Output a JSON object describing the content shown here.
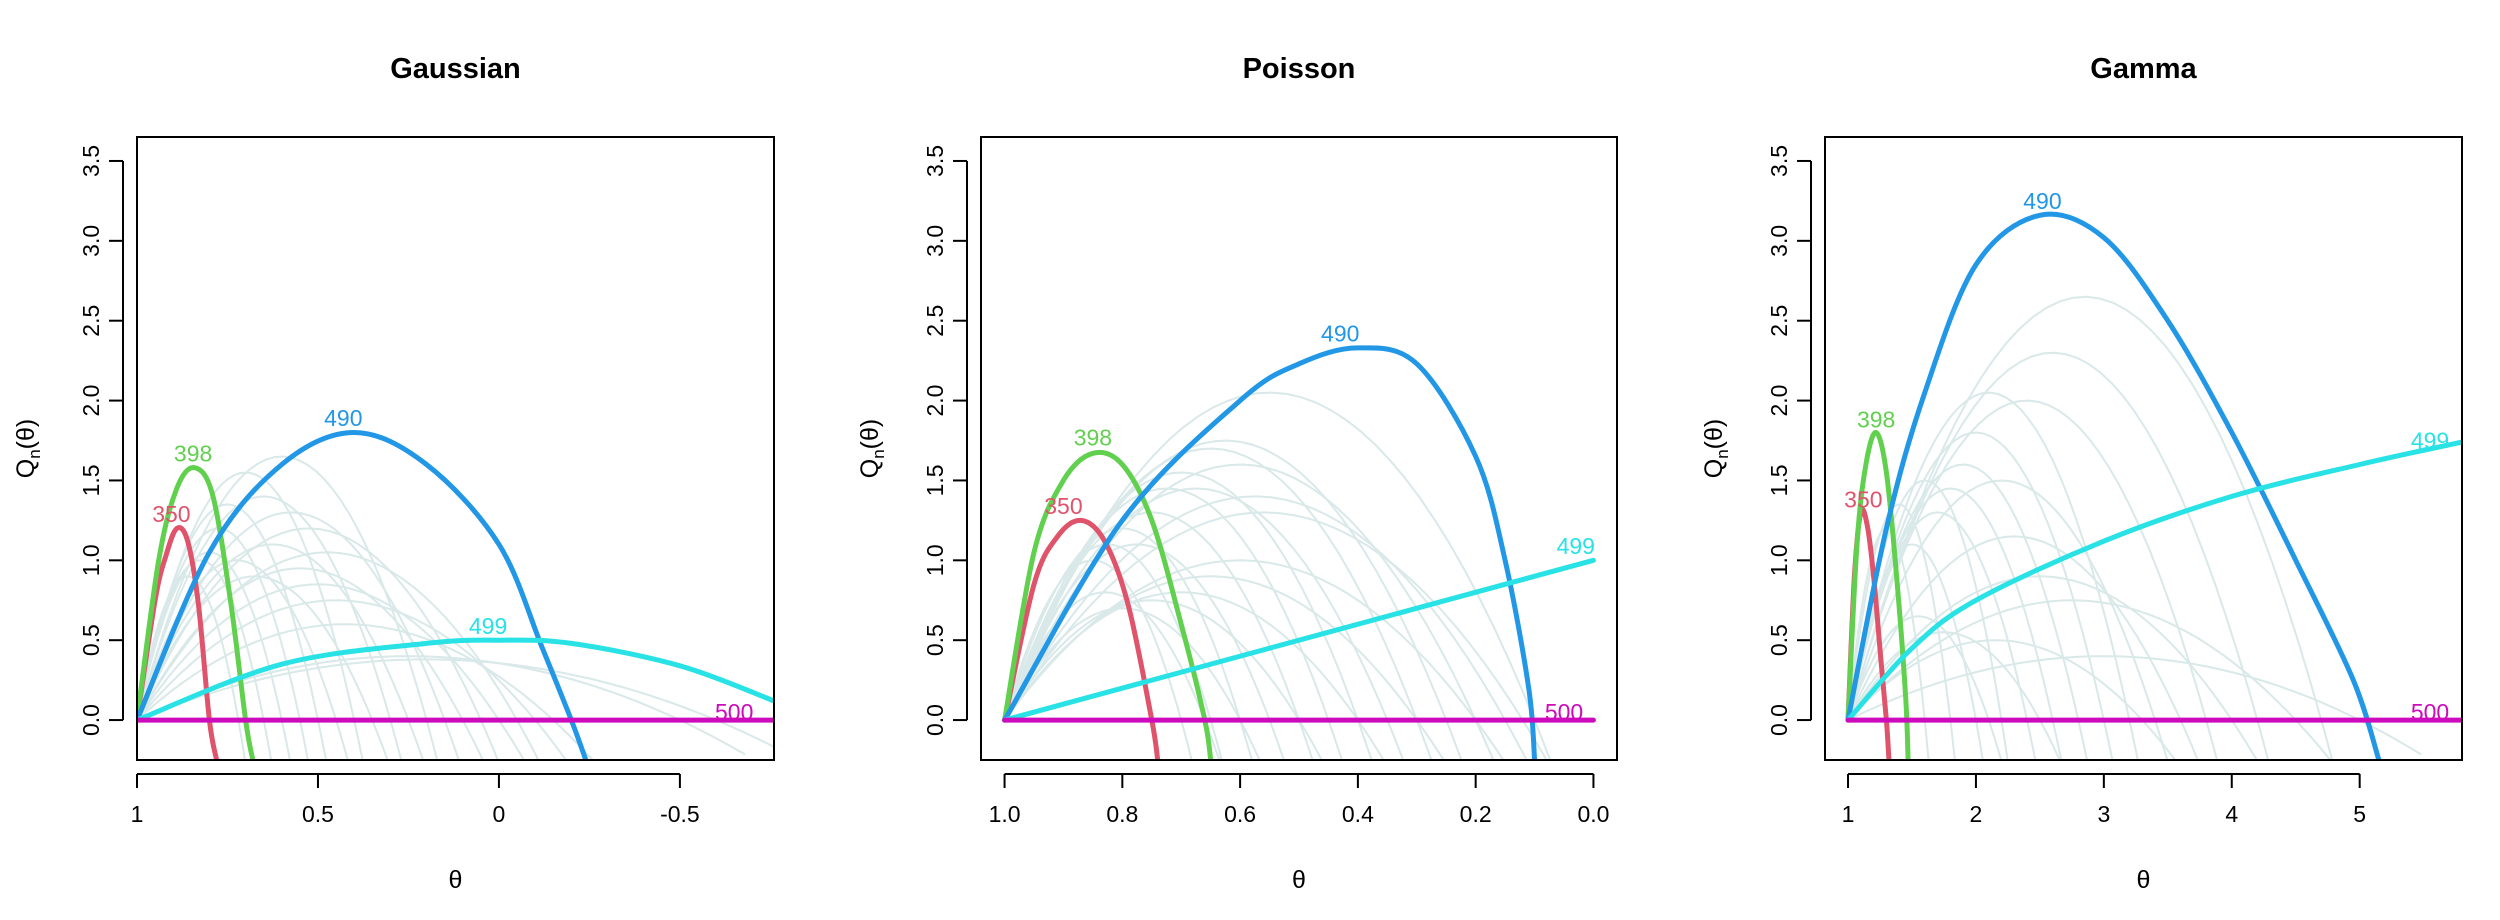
{
  "colors": {
    "background": "#ffffff",
    "axis": "#000000",
    "background_curves": "#d9e8e8",
    "350": "#df536b",
    "398": "#61d04f",
    "490": "#2297e6",
    "499": "#28e2e5",
    "500": "#cd0bbc"
  },
  "chart_data": [
    {
      "type": "line",
      "title": "Gaussian",
      "xlabel": "θ",
      "ylabel": "Qn(θ)",
      "ylabel_main": "Q",
      "ylabel_sub": "n",
      "ylabel_arg": "(θ)",
      "xlim": [
        1.0,
        -0.76
      ],
      "ylim": [
        -0.25,
        3.65
      ],
      "xticks": [
        1,
        0.5,
        0,
        -0.5
      ],
      "xtick_labels": [
        "1",
        "0.5",
        "0",
        "-0.5"
      ],
      "yticks": [
        0.0,
        0.5,
        1.0,
        1.5,
        2.0,
        2.5,
        3.0,
        3.5
      ],
      "ytick_labels": [
        "0.0",
        "0.5",
        "1.0",
        "1.5",
        "2.0",
        "2.5",
        "3.0",
        "3.5"
      ],
      "grid": false,
      "legend": "none",
      "series": [
        {
          "name": "350",
          "points": [
            [
              1.0,
              0.0
            ],
            [
              0.95,
              0.75
            ],
            [
              0.92,
              1.03
            ],
            [
              0.89,
              1.2
            ],
            [
              0.86,
              1.12
            ],
            [
              0.83,
              0.72
            ],
            [
              0.8,
              0.0
            ],
            [
              0.78,
              -0.25
            ]
          ]
        },
        {
          "name": "398",
          "points": [
            [
              1.0,
              0.0
            ],
            [
              0.94,
              1.0
            ],
            [
              0.89,
              1.45
            ],
            [
              0.84,
              1.58
            ],
            [
              0.79,
              1.4
            ],
            [
              0.74,
              0.72
            ],
            [
              0.7,
              0.0
            ],
            [
              0.68,
              -0.25
            ]
          ]
        },
        {
          "name": "490",
          "points": [
            [
              1.0,
              0.0
            ],
            [
              0.8,
              1.05
            ],
            [
              0.6,
              1.6
            ],
            [
              0.4,
              1.8
            ],
            [
              0.2,
              1.6
            ],
            [
              0.0,
              1.1
            ],
            [
              -0.12,
              0.45
            ],
            [
              -0.2,
              0.0
            ],
            [
              -0.24,
              -0.25
            ]
          ]
        },
        {
          "name": "499",
          "points": [
            [
              1.0,
              0.0
            ],
            [
              0.6,
              0.35
            ],
            [
              0.2,
              0.48
            ],
            [
              0.0,
              0.5
            ],
            [
              -0.2,
              0.48
            ],
            [
              -0.5,
              0.34
            ],
            [
              -0.76,
              0.12
            ]
          ]
        },
        {
          "name": "500",
          "points": [
            [
              1.0,
              0.0
            ],
            [
              -0.76,
              0.0
            ]
          ]
        }
      ],
      "labels": [
        {
          "text": "350",
          "x": 0.905,
          "y": 1.29
        },
        {
          "text": "398",
          "x": 0.845,
          "y": 1.67
        },
        {
          "text": "490",
          "x": 0.43,
          "y": 1.89
        },
        {
          "text": "499",
          "x": 0.03,
          "y": 0.59
        },
        {
          "text": "500",
          "x": -0.65,
          "y": 0.05
        }
      ],
      "background_curves": [
        {
          "end": 0.72,
          "peak": 0.9
        },
        {
          "end": 0.65,
          "peak": 1.0
        },
        {
          "end": 0.6,
          "peak": 1.05
        },
        {
          "end": 0.55,
          "peak": 1.2
        },
        {
          "end": 0.5,
          "peak": 1.35
        },
        {
          "end": 0.45,
          "peak": 1.0
        },
        {
          "end": 0.4,
          "peak": 1.55
        },
        {
          "end": 0.35,
          "peak": 0.9
        },
        {
          "end": 0.3,
          "peak": 1.4
        },
        {
          "end": 0.25,
          "peak": 1.1
        },
        {
          "end": 0.2,
          "peak": 1.65
        },
        {
          "end": 0.15,
          "peak": 1.3
        },
        {
          "end": 0.1,
          "peak": 0.95
        },
        {
          "end": 0.05,
          "peak": 1.2
        },
        {
          "end": 0.0,
          "peak": 0.85
        },
        {
          "end": -0.05,
          "peak": 1.05
        },
        {
          "end": -0.1,
          "peak": 0.75
        },
        {
          "end": -0.15,
          "peak": 0.6
        },
        {
          "end": -0.5,
          "peak": 0.4
        },
        {
          "end": -0.6,
          "peak": 0.38
        }
      ]
    },
    {
      "type": "line",
      "title": "Poisson",
      "xlabel": "θ",
      "ylabel": "Qn(θ)",
      "ylabel_main": "Q",
      "ylabel_sub": "n",
      "ylabel_arg": "(θ)",
      "xlim": [
        1.04,
        -0.04
      ],
      "ylim": [
        -0.25,
        3.65
      ],
      "xticks": [
        1.0,
        0.8,
        0.6,
        0.4,
        0.2,
        0.0
      ],
      "xtick_labels": [
        "1.0",
        "0.8",
        "0.6",
        "0.4",
        "0.2",
        "0.0"
      ],
      "yticks": [
        0.0,
        0.5,
        1.0,
        1.5,
        2.0,
        2.5,
        3.0,
        3.5
      ],
      "ytick_labels": [
        "0.0",
        "0.5",
        "1.0",
        "1.5",
        "2.0",
        "2.5",
        "3.0",
        "3.5"
      ],
      "grid": false,
      "legend": "none",
      "series": [
        {
          "name": "350",
          "points": [
            [
              1.0,
              0.0
            ],
            [
              0.95,
              0.85
            ],
            [
              0.91,
              1.15
            ],
            [
              0.87,
              1.25
            ],
            [
              0.83,
              1.12
            ],
            [
              0.79,
              0.72
            ],
            [
              0.75,
              0.0
            ],
            [
              0.74,
              -0.25
            ]
          ]
        },
        {
          "name": "398",
          "points": [
            [
              1.0,
              0.0
            ],
            [
              0.95,
              1.05
            ],
            [
              0.9,
              1.5
            ],
            [
              0.85,
              1.67
            ],
            [
              0.8,
              1.6
            ],
            [
              0.75,
              1.25
            ],
            [
              0.7,
              0.6
            ],
            [
              0.66,
              0.0
            ],
            [
              0.65,
              -0.25
            ]
          ]
        },
        {
          "name": "490",
          "points": [
            [
              1.0,
              0.0
            ],
            [
              0.8,
              1.25
            ],
            [
              0.6,
              2.0
            ],
            [
              0.5,
              2.23
            ],
            [
              0.4,
              2.33
            ],
            [
              0.3,
              2.23
            ],
            [
              0.2,
              1.65
            ],
            [
              0.15,
              1.0
            ],
            [
              0.11,
              0.2
            ],
            [
              0.1,
              -0.25
            ]
          ]
        },
        {
          "name": "499",
          "points": [
            [
              1.0,
              0.0
            ],
            [
              0.0,
              1.0
            ]
          ]
        },
        {
          "name": "500",
          "points": [
            [
              1.0,
              0.0
            ],
            [
              0.0,
              0.0
            ]
          ]
        }
      ],
      "labels": [
        {
          "text": "350",
          "x": 0.9,
          "y": 1.34
        },
        {
          "text": "398",
          "x": 0.85,
          "y": 1.77
        },
        {
          "text": "490",
          "x": 0.43,
          "y": 2.42
        },
        {
          "text": "499",
          "x": 0.03,
          "y": 1.09
        },
        {
          "text": "500",
          "x": 0.05,
          "y": 0.05
        }
      ],
      "background_curves": [
        {
          "end": 0.7,
          "peak": 1.0
        },
        {
          "end": 0.65,
          "peak": 1.1
        },
        {
          "end": 0.6,
          "peak": 1.2
        },
        {
          "end": 0.55,
          "peak": 1.1
        },
        {
          "end": 0.5,
          "peak": 1.3
        },
        {
          "end": 0.45,
          "peak": 1.45
        },
        {
          "end": 0.4,
          "peak": 1.55
        },
        {
          "end": 0.35,
          "peak": 1.45
        },
        {
          "end": 0.3,
          "peak": 1.7
        },
        {
          "end": 0.25,
          "peak": 1.75
        },
        {
          "end": 0.2,
          "peak": 1.6
        },
        {
          "end": 0.15,
          "peak": 1.4
        },
        {
          "end": 0.1,
          "peak": 2.05
        },
        {
          "end": 0.12,
          "peak": 1.3
        },
        {
          "end": 0.2,
          "peak": 1.0
        },
        {
          "end": 0.3,
          "peak": 0.9
        },
        {
          "end": 0.4,
          "peak": 0.8
        },
        {
          "end": 0.5,
          "peak": 0.75
        },
        {
          "end": 0.6,
          "peak": 0.7
        },
        {
          "end": 0.66,
          "peak": 0.8
        }
      ]
    },
    {
      "type": "line",
      "title": "Gamma",
      "xlabel": "θ",
      "ylabel": "Qn(θ)",
      "ylabel_main": "Q",
      "ylabel_sub": "n",
      "ylabel_arg": "(θ)",
      "xlim": [
        0.82,
        5.8
      ],
      "ylim": [
        -0.25,
        3.65
      ],
      "xticks": [
        1,
        2,
        3,
        4,
        5
      ],
      "xtick_labels": [
        "1",
        "2",
        "3",
        "4",
        "5"
      ],
      "yticks": [
        0.0,
        0.5,
        1.0,
        1.5,
        2.0,
        2.5,
        3.0,
        3.5
      ],
      "ytick_labels": [
        "0.0",
        "0.5",
        "1.0",
        "1.5",
        "2.0",
        "2.5",
        "3.0",
        "3.5"
      ],
      "grid": false,
      "legend": "none",
      "series": [
        {
          "name": "350",
          "points": [
            [
              1.0,
              0.0
            ],
            [
              1.05,
              0.9
            ],
            [
              1.1,
              1.3
            ],
            [
              1.15,
              1.22
            ],
            [
              1.2,
              0.9
            ],
            [
              1.26,
              0.35
            ],
            [
              1.3,
              0.0
            ],
            [
              1.32,
              -0.25
            ]
          ]
        },
        {
          "name": "398",
          "points": [
            [
              1.0,
              0.0
            ],
            [
              1.07,
              1.1
            ],
            [
              1.14,
              1.6
            ],
            [
              1.22,
              1.8
            ],
            [
              1.3,
              1.55
            ],
            [
              1.38,
              0.9
            ],
            [
              1.45,
              0.15
            ],
            [
              1.47,
              -0.25
            ]
          ]
        },
        {
          "name": "490",
          "points": [
            [
              1.0,
              0.0
            ],
            [
              1.3,
              1.2
            ],
            [
              1.6,
              2.05
            ],
            [
              2.0,
              2.85
            ],
            [
              2.5,
              3.16
            ],
            [
              3.0,
              3.02
            ],
            [
              3.5,
              2.5
            ],
            [
              4.0,
              1.8
            ],
            [
              4.5,
              1.0
            ],
            [
              4.95,
              0.25
            ],
            [
              5.15,
              -0.25
            ]
          ]
        },
        {
          "name": "499",
          "points": [
            [
              1.0,
              0.0
            ],
            [
              1.5,
              0.45
            ],
            [
              2.0,
              0.75
            ],
            [
              3.0,
              1.12
            ],
            [
              4.0,
              1.4
            ],
            [
              5.0,
              1.6
            ],
            [
              5.8,
              1.74
            ]
          ]
        },
        {
          "name": "500",
          "points": [
            [
              1.0,
              0.0
            ],
            [
              5.8,
              0.0
            ]
          ]
        }
      ],
      "labels": [
        {
          "text": "350",
          "x": 1.12,
          "y": 1.38
        },
        {
          "text": "398",
          "x": 1.22,
          "y": 1.88
        },
        {
          "text": "490",
          "x": 2.52,
          "y": 3.25
        },
        {
          "text": "499",
          "x": 5.55,
          "y": 1.75
        },
        {
          "text": "500",
          "x": 5.55,
          "y": 0.05
        }
      ],
      "background_curves": [
        {
          "end": 1.6,
          "peak": 1.2
        },
        {
          "end": 1.8,
          "peak": 1.35
        },
        {
          "end": 2.0,
          "peak": 1.1
        },
        {
          "end": 2.2,
          "peak": 1.5
        },
        {
          "end": 2.4,
          "peak": 1.3
        },
        {
          "end": 2.6,
          "peak": 1.45
        },
        {
          "end": 2.8,
          "peak": 1.6
        },
        {
          "end": 3.0,
          "peak": 1.8
        },
        {
          "end": 3.2,
          "peak": 2.05
        },
        {
          "end": 3.4,
          "peak": 1.5
        },
        {
          "end": 3.6,
          "peak": 1.15
        },
        {
          "end": 3.8,
          "peak": 2.0
        },
        {
          "end": 4.0,
          "peak": 0.9
        },
        {
          "end": 4.2,
          "peak": 2.3
        },
        {
          "end": 4.5,
          "peak": 0.75
        },
        {
          "end": 4.7,
          "peak": 2.65
        },
        {
          "end": 5.0,
          "peak": 0.4
        },
        {
          "end": 2.1,
          "peak": 0.65
        },
        {
          "end": 2.5,
          "peak": 0.55
        },
        {
          "end": 3.3,
          "peak": 0.5
        }
      ]
    }
  ]
}
